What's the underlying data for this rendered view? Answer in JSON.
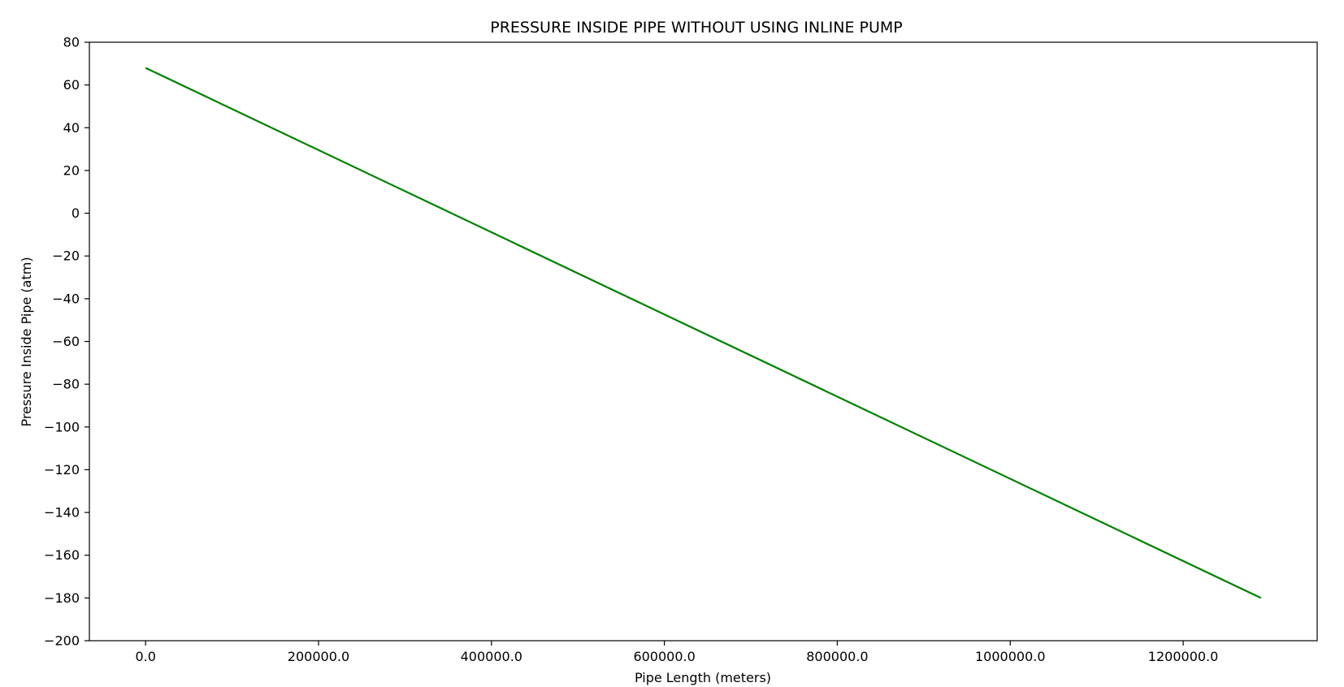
{
  "chart_data": {
    "type": "line",
    "title": "PRESSURE INSIDE PIPE WITHOUT USING INLINE PUMP",
    "xlabel": "Pipe Length (meters)",
    "ylabel": "Pressure Inside Pipe (atm)",
    "xlim": [
      -65000,
      1355000
    ],
    "ylim": [
      -200,
      80
    ],
    "xticks": [
      0,
      200000,
      400000,
      600000,
      800000,
      1000000,
      1200000
    ],
    "xtick_labels": [
      "0.0",
      "200000.0",
      "400000.0",
      "600000.0",
      "800000.0",
      "1000000.0",
      "1200000.0"
    ],
    "yticks": [
      80,
      60,
      40,
      20,
      0,
      -20,
      -40,
      -60,
      -80,
      -100,
      -120,
      -140,
      -160,
      -180,
      -200
    ],
    "ytick_labels": [
      "80",
      "60",
      "40",
      "20",
      "0",
      "−20",
      "−40",
      "−60",
      "−80",
      "−100",
      "−120",
      "−140",
      "−160",
      "−180",
      "−200"
    ],
    "grid": false,
    "series": [
      {
        "color": "#008000",
        "x": [
          0,
          1290000
        ],
        "y": [
          68,
          -180
        ]
      }
    ]
  }
}
